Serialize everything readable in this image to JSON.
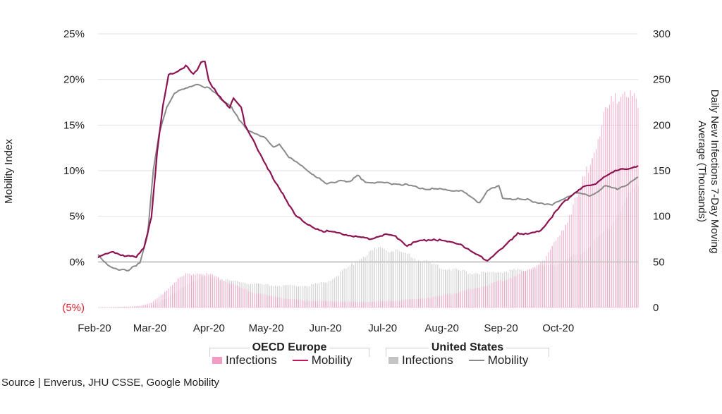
{
  "colors": {
    "europe_infections": "#f09cc3",
    "europe_mobility": "#8c1452",
    "us_infections": "#c4c4c4",
    "us_mobility": "#8a8a8a",
    "grid": "#e2e2e2",
    "zero_line": "#c8c8c8",
    "negative_tick": "#e0202c"
  },
  "source": "Source | Enverus, JHU CSSE, Google Mobility",
  "legend": {
    "groups": [
      {
        "title": "OECD Europe",
        "items": [
          "Infections",
          "Mobility"
        ]
      },
      {
        "title": "United States",
        "items": [
          "Infections",
          "Mobility"
        ]
      }
    ]
  },
  "chart_data": {
    "type": "bar+line",
    "title": "",
    "xlabel": "",
    "ylabel_left": "Mobility Index",
    "ylabel_right": "Daily New Infections 7-Day Moving Average (Thousands)",
    "ylim_left": [
      -5,
      25
    ],
    "ylim_right": [
      0,
      300
    ],
    "yticks_left": [
      "(5%)",
      "0%",
      "5%",
      "10%",
      "15%",
      "20%",
      "25%"
    ],
    "yticks_right": [
      "0",
      "50",
      "100",
      "150",
      "200",
      "250",
      "300"
    ],
    "x_ticks": [
      "Feb-20",
      "Mar-20",
      "Apr-20",
      "May-20",
      "Jun-20",
      "Jul-20",
      "Aug-20",
      "Sep-20",
      "Oct-20"
    ],
    "x_unit": "days since Feb 1 2020",
    "x_range": [
      0,
      283
    ],
    "grid": true,
    "legend_position": "bottom",
    "series": [
      {
        "name": "OECD Europe Mobility",
        "axis": "left",
        "kind": "line",
        "points": [
          [
            0,
            0.5
          ],
          [
            8,
            1.1
          ],
          [
            14,
            0.7
          ],
          [
            20,
            0.5
          ],
          [
            24,
            1.5
          ],
          [
            28,
            5
          ],
          [
            31,
            12
          ],
          [
            34,
            17
          ],
          [
            37,
            20.5
          ],
          [
            42,
            21
          ],
          [
            46,
            21.5
          ],
          [
            50,
            20.5
          ],
          [
            52,
            21
          ],
          [
            54,
            22
          ],
          [
            56,
            22
          ],
          [
            58,
            20
          ],
          [
            62,
            18.5
          ],
          [
            66,
            17.5
          ],
          [
            69,
            17
          ],
          [
            71,
            18
          ],
          [
            75,
            17
          ],
          [
            77,
            15
          ],
          [
            82,
            13
          ],
          [
            86,
            11.5
          ],
          [
            92,
            9
          ],
          [
            98,
            7
          ],
          [
            104,
            5
          ],
          [
            110,
            4
          ],
          [
            118,
            3.4
          ],
          [
            130,
            3
          ],
          [
            142,
            2.5
          ],
          [
            150,
            3
          ],
          [
            156,
            2.8
          ],
          [
            162,
            1.8
          ],
          [
            168,
            2.3
          ],
          [
            176,
            2.5
          ],
          [
            183,
            2.2
          ],
          [
            190,
            2
          ],
          [
            196,
            1
          ],
          [
            204,
            0.2
          ],
          [
            212,
            1.5
          ],
          [
            220,
            3.2
          ],
          [
            226,
            3
          ],
          [
            232,
            3.5
          ],
          [
            238,
            5
          ],
          [
            244,
            6.5
          ],
          [
            252,
            8
          ],
          [
            260,
            8.5
          ],
          [
            266,
            9.5
          ],
          [
            272,
            10
          ],
          [
            278,
            10.3
          ],
          [
            283,
            10.5
          ]
        ]
      },
      {
        "name": "United States Mobility",
        "axis": "left",
        "kind": "line",
        "points": [
          [
            0,
            0.7
          ],
          [
            3,
            0
          ],
          [
            10,
            -0.8
          ],
          [
            16,
            -1
          ],
          [
            22,
            0
          ],
          [
            26,
            3
          ],
          [
            29,
            10
          ],
          [
            32,
            14
          ],
          [
            36,
            17
          ],
          [
            40,
            18.5
          ],
          [
            46,
            19
          ],
          [
            52,
            19.5
          ],
          [
            58,
            19
          ],
          [
            64,
            18
          ],
          [
            70,
            17
          ],
          [
            74,
            15.5
          ],
          [
            78,
            14.5
          ],
          [
            84,
            14
          ],
          [
            88,
            13.5
          ],
          [
            92,
            12.5
          ],
          [
            95,
            13
          ],
          [
            100,
            11.5
          ],
          [
            110,
            10
          ],
          [
            120,
            8.5
          ],
          [
            128,
            9
          ],
          [
            132,
            8.7
          ],
          [
            136,
            9.5
          ],
          [
            140,
            8.8
          ],
          [
            160,
            8.5
          ],
          [
            172,
            8
          ],
          [
            190,
            7.8
          ],
          [
            200,
            6.5
          ],
          [
            204,
            7.8
          ],
          [
            210,
            8.3
          ],
          [
            212,
            7
          ],
          [
            225,
            6.8
          ],
          [
            238,
            6.2
          ],
          [
            244,
            7
          ],
          [
            250,
            7.5
          ],
          [
            258,
            7.3
          ],
          [
            266,
            8.3
          ],
          [
            272,
            8
          ],
          [
            278,
            8.6
          ],
          [
            283,
            9.2
          ]
        ]
      },
      {
        "name": "OECD Europe Infections",
        "axis": "right",
        "kind": "bar",
        "points": [
          [
            0,
            0
          ],
          [
            20,
            1
          ],
          [
            28,
            5
          ],
          [
            34,
            15
          ],
          [
            40,
            28
          ],
          [
            46,
            36
          ],
          [
            52,
            38
          ],
          [
            58,
            36
          ],
          [
            64,
            32
          ],
          [
            72,
            24
          ],
          [
            82,
            16
          ],
          [
            92,
            12
          ],
          [
            104,
            8
          ],
          [
            120,
            7
          ],
          [
            140,
            6
          ],
          [
            160,
            8
          ],
          [
            175,
            11
          ],
          [
            190,
            17
          ],
          [
            205,
            25
          ],
          [
            215,
            32
          ],
          [
            225,
            40
          ],
          [
            235,
            55
          ],
          [
            242,
            80
          ],
          [
            250,
            115
          ],
          [
            258,
            160
          ],
          [
            265,
            205
          ],
          [
            270,
            225
          ],
          [
            275,
            240
          ],
          [
            280,
            230
          ],
          [
            283,
            215
          ]
        ]
      },
      {
        "name": "United States Infections",
        "axis": "right",
        "kind": "bar",
        "points": [
          [
            0,
            0
          ],
          [
            28,
            2
          ],
          [
            36,
            10
          ],
          [
            44,
            22
          ],
          [
            50,
            30
          ],
          [
            58,
            34
          ],
          [
            66,
            30
          ],
          [
            74,
            28
          ],
          [
            84,
            25
          ],
          [
            96,
            24
          ],
          [
            110,
            24
          ],
          [
            120,
            28
          ],
          [
            130,
            42
          ],
          [
            140,
            58
          ],
          [
            148,
            66
          ],
          [
            156,
            62
          ],
          [
            166,
            54
          ],
          [
            180,
            44
          ],
          [
            195,
            38
          ],
          [
            205,
            38
          ],
          [
            215,
            40
          ],
          [
            225,
            42
          ],
          [
            235,
            45
          ],
          [
            245,
            50
          ],
          [
            255,
            62
          ],
          [
            265,
            82
          ],
          [
            272,
            100
          ],
          [
            278,
            120
          ],
          [
            283,
            135
          ]
        ]
      }
    ]
  }
}
